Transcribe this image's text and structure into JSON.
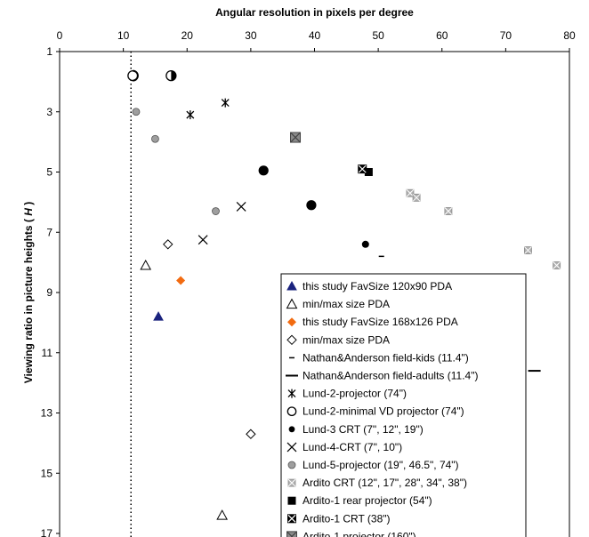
{
  "chart_data": {
    "type": "scatter",
    "xlabel": "Angular resolution in pixels per degree",
    "ylabel": "Viewing ratio in picture heights (",
    "ylabel_italic": "H",
    "ylabel_end": ")",
    "xlim": [
      0,
      80
    ],
    "ylim": [
      1,
      17
    ],
    "x_ticks": [
      0,
      10,
      20,
      30,
      40,
      50,
      60,
      70,
      80
    ],
    "y_ticks": [
      1,
      3,
      5,
      7,
      9,
      11,
      13,
      15,
      17
    ],
    "x_axis_position": "top",
    "y_axis_reversed": true,
    "grid": false,
    "reference_line": {
      "x": 11.2,
      "style": "dotted"
    },
    "legend_position": "bottom-right",
    "series": [
      {
        "name": "this study FavSize 120x90 PDA",
        "marker": "filled-triangle",
        "color": "#1a237e",
        "points": [
          [
            15.5,
            9.8
          ]
        ]
      },
      {
        "name": "min/max size PDA",
        "marker": "open-triangle",
        "color": "#000000",
        "points": [
          [
            13.5,
            8.1
          ],
          [
            25.5,
            16.4
          ]
        ]
      },
      {
        "name": "this study FavSize 168x126 PDA",
        "marker": "filled-diamond",
        "color": "#f26b11",
        "points": [
          [
            19.0,
            8.6
          ]
        ]
      },
      {
        "name": "min/max size PDA",
        "marker": "open-diamond",
        "color": "#000000",
        "points": [
          [
            17.0,
            7.4
          ],
          [
            30.0,
            13.7
          ]
        ]
      },
      {
        "name": "Nathan&Anderson field-kids (11.4\")",
        "marker": "short-dash",
        "color": "#000000",
        "points": [
          [
            50.5,
            7.8
          ]
        ]
      },
      {
        "name": "Nathan&Anderson field-adults  (11.4\")",
        "marker": "long-dash",
        "color": "#000000",
        "points": [
          [
            74.5,
            11.6
          ]
        ]
      },
      {
        "name": "Lund-2-projector (74\")",
        "marker": "asterisk",
        "color": "#000000",
        "points": [
          [
            20.5,
            3.1
          ],
          [
            26.0,
            2.7
          ]
        ]
      },
      {
        "name": "Lund-2-minimal VD projector (74\")",
        "marker": "open-circle",
        "color": "#000000",
        "points": [
          [
            11.5,
            1.8
          ],
          [
            17.5,
            1.8
          ]
        ]
      },
      {
        "name": "Lund-3 CRT (7\", 12\", 19\")",
        "marker": "filled-circle",
        "color": "#000000",
        "points": [
          [
            32.0,
            4.95
          ],
          [
            39.5,
            6.1
          ],
          [
            48.0,
            7.4
          ]
        ]
      },
      {
        "name": "Lund-4-CRT (7\", 10\")",
        "marker": "x-cross",
        "color": "#000000",
        "points": [
          [
            22.5,
            7.25
          ],
          [
            28.5,
            6.15
          ]
        ]
      },
      {
        "name": "Lund-5-projector (19\", 46.5\", 74\")",
        "marker": "gray-circle",
        "color": "#9e9e9e",
        "points": [
          [
            12.0,
            3.0
          ],
          [
            15.0,
            3.9
          ],
          [
            24.5,
            6.3
          ]
        ]
      },
      {
        "name": "Ardito CRT (12\", 17\", 28\", 34\", 38\")",
        "marker": "gray-square-x",
        "color": "#a0a0a0",
        "points": [
          [
            55.0,
            5.7
          ],
          [
            56.0,
            5.85
          ],
          [
            61.0,
            6.3
          ],
          [
            73.5,
            7.6
          ],
          [
            78.0,
            8.1
          ]
        ]
      },
      {
        "name": "Ardito-1 rear projector (54\")",
        "marker": "filled-square",
        "color": "#000000",
        "points": [
          [
            48.5,
            5.0
          ]
        ]
      },
      {
        "name": "Ardito-1 CRT (38\")",
        "marker": "black-square-x",
        "color": "#000000",
        "points": [
          [
            47.5,
            4.9
          ]
        ]
      },
      {
        "name": "Ardito-1 projector (160\")",
        "marker": "dark-gray-square-x",
        "color": "#6e6e6e",
        "points": [
          [
            37.0,
            3.85
          ]
        ]
      }
    ]
  }
}
